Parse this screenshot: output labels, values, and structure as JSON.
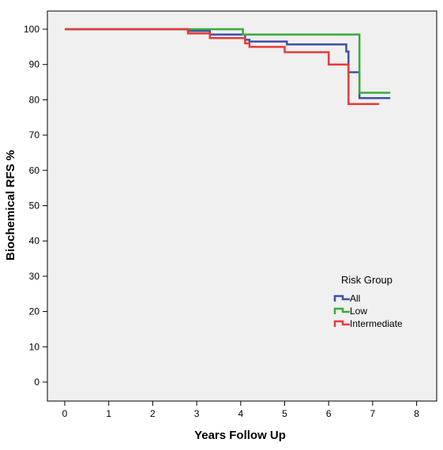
{
  "chart_data": {
    "type": "line",
    "step": true,
    "xlabel": "Years Follow Up",
    "ylabel": "Biochemical RFS %",
    "xlim": [
      0,
      8
    ],
    "ylim": [
      0,
      100
    ],
    "xticks": [
      "0",
      "1",
      "2",
      "3",
      "4",
      "5",
      "6",
      "7",
      "8"
    ],
    "yticks": [
      "0",
      "10",
      "20",
      "30",
      "40",
      "50",
      "60",
      "70",
      "80",
      "90",
      "100"
    ],
    "background": "#f0f0f0",
    "grid": false,
    "legend": {
      "title": "Risk Group",
      "position": "lower-right",
      "entries": [
        "All",
        "Low",
        "Intermediate"
      ]
    },
    "series": [
      {
        "name": "All",
        "color": "#3c50a8",
        "points": [
          [
            0,
            100
          ],
          [
            2.8,
            100
          ],
          [
            2.8,
            99.5
          ],
          [
            3.3,
            99.5
          ],
          [
            3.3,
            98.5
          ],
          [
            4.1,
            98.5
          ],
          [
            4.1,
            97
          ],
          [
            4.2,
            97
          ],
          [
            4.2,
            96.5
          ],
          [
            5.05,
            96.5
          ],
          [
            5.05,
            95.7
          ],
          [
            6.4,
            95.7
          ],
          [
            6.4,
            93.7
          ],
          [
            6.45,
            93.7
          ],
          [
            6.45,
            87.8
          ],
          [
            6.7,
            87.8
          ],
          [
            6.7,
            80.5
          ],
          [
            7.4,
            80.5
          ]
        ]
      },
      {
        "name": "Low",
        "color": "#3aaa3a",
        "points": [
          [
            0,
            100
          ],
          [
            4.05,
            100
          ],
          [
            4.05,
            98.5
          ],
          [
            6.7,
            98.5
          ],
          [
            6.7,
            82
          ],
          [
            7.4,
            82
          ]
        ]
      },
      {
        "name": "Intermediate",
        "color": "#e83a3a",
        "points": [
          [
            0,
            100
          ],
          [
            2.8,
            100
          ],
          [
            2.8,
            98.8
          ],
          [
            3.3,
            98.8
          ],
          [
            3.3,
            97.5
          ],
          [
            4.1,
            97.5
          ],
          [
            4.1,
            96
          ],
          [
            4.2,
            96
          ],
          [
            4.2,
            95
          ],
          [
            5.0,
            95
          ],
          [
            5.0,
            93.5
          ],
          [
            6.0,
            93.5
          ],
          [
            6.0,
            90
          ],
          [
            6.45,
            90
          ],
          [
            6.45,
            78.8
          ],
          [
            7.15,
            78.8
          ]
        ]
      }
    ]
  }
}
